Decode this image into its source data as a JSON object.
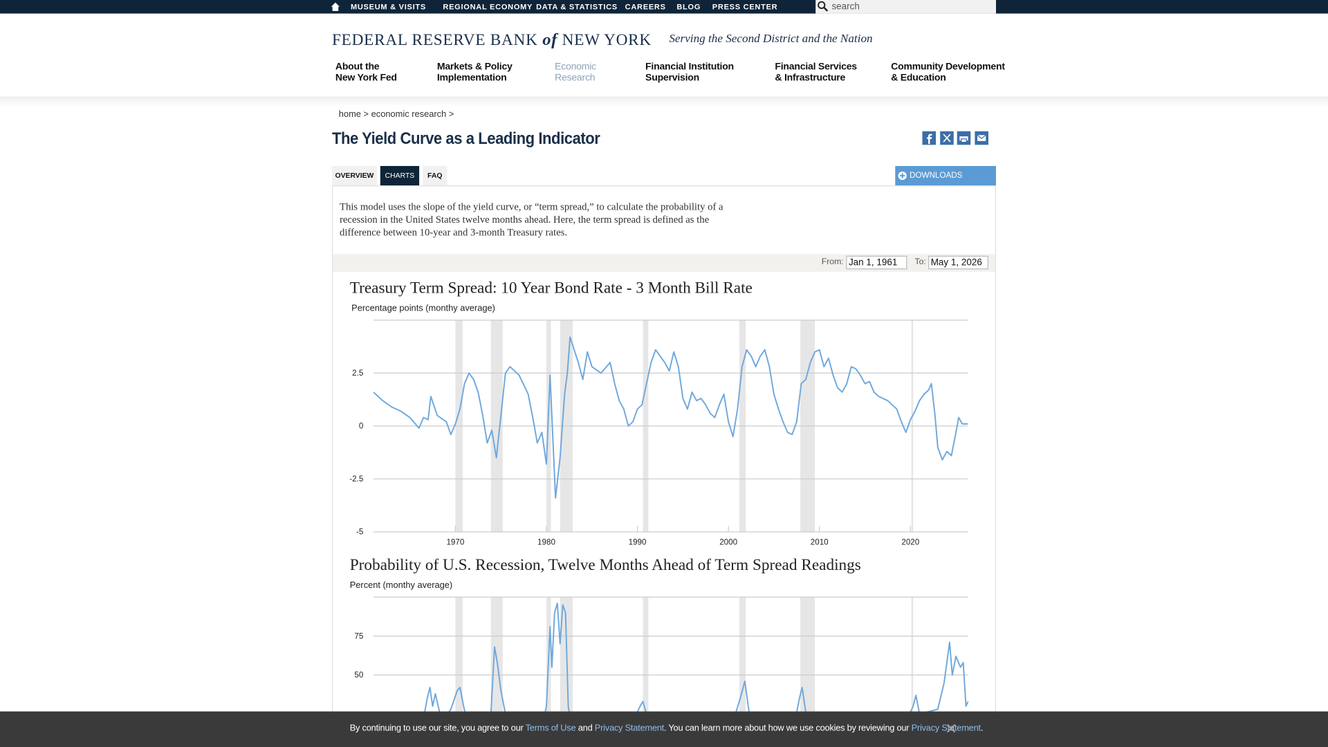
{
  "top_nav": [
    "MUSEUM & VISITS",
    "REGIONAL ECONOMY",
    "DATA & STATISTICS",
    "CAREERS",
    "BLOG",
    "PRESS CENTER"
  ],
  "search_placeholder": "search",
  "logo": {
    "name_start": "FEDERAL RESERVE BANK",
    "name_of": "of",
    "name_end": "NEW YORK",
    "tagline": "Serving the Second District and the Nation"
  },
  "main_nav": [
    [
      "About the",
      "New York Fed"
    ],
    [
      "Markets & Policy",
      "Implementation"
    ],
    [
      "Economic",
      "Research"
    ],
    [
      "Financial Institution",
      "Supervision"
    ],
    [
      "Financial Services",
      "& Infrastructure"
    ],
    [
      "Community Development",
      "& Education"
    ]
  ],
  "breadcrumb": [
    "home",
    "economic research"
  ],
  "breadcrumb_separator": ">",
  "page_title": "The Yield Curve as a Leading Indicator",
  "tabs": [
    "OVERVIEW",
    "CHARTS",
    "FAQ"
  ],
  "downloads": "DOWNLOADS",
  "description": "This model uses the slope of the yield curve, or “term spread,” to calculate the probability of a recession in the United States twelve months ahead. Here, the term spread is defined as the difference between 10-year and 3-month Treasury rates.",
  "date_range": {
    "from_label": "From:",
    "from": "Jan 1, 1961",
    "to_label": "To:",
    "to": "May 1, 2026"
  },
  "chart_data": [
    {
      "type": "line",
      "title": "Treasury Term Spread: 10 Year Bond Rate - 3 Month Bill Rate",
      "y_label": "Percentage points (monthy average)",
      "color": "#6fa8dc",
      "grid": true,
      "xlim": [
        1961,
        2026.33
      ],
      "ylim": [
        -5,
        5
      ],
      "xticks": [
        1970,
        1980,
        1990,
        2000,
        2010,
        2020
      ],
      "yticks": [
        -5,
        -2.5,
        0,
        2.5
      ],
      "recession_color": "#e6e6e6",
      "recessions": [
        [
          1970.0,
          1970.8
        ],
        [
          1973.9,
          1975.2
        ],
        [
          1980.0,
          1980.5
        ],
        [
          1981.5,
          1982.9
        ],
        [
          1990.6,
          1991.2
        ],
        [
          2001.2,
          2001.9
        ],
        [
          2007.9,
          2009.5
        ],
        [
          2020.1,
          2020.3
        ]
      ],
      "x": [
        1961,
        1962,
        1963,
        1964,
        1965,
        1966,
        1966.5,
        1967,
        1967.3,
        1968,
        1969,
        1969.5,
        1970,
        1970.5,
        1971,
        1971.5,
        1972,
        1972.5,
        1973,
        1973.5,
        1974,
        1974.5,
        1975,
        1975.5,
        1976,
        1977,
        1978,
        1978.5,
        1979,
        1979.5,
        1980,
        1980.4,
        1980.7,
        1981,
        1981.5,
        1982,
        1982.3,
        1982.6,
        1983.5,
        1984,
        1984.5,
        1985,
        1986,
        1987,
        1987.5,
        1988,
        1988.5,
        1989,
        1989.5,
        1990,
        1990.5,
        1991,
        1991.5,
        1992,
        1993,
        1993.5,
        1994,
        1994.5,
        1995,
        1995.5,
        1996,
        1996.5,
        1997,
        1997.5,
        1998,
        1998.5,
        1999,
        1999.5,
        2000,
        2000.5,
        2001,
        2001.5,
        2002,
        2002.5,
        2003,
        2003.5,
        2004,
        2004.5,
        2005,
        2005.5,
        2006,
        2006.5,
        2007,
        2007.5,
        2008,
        2008.5,
        2009,
        2009.5,
        2010,
        2010.5,
        2011,
        2011.5,
        2012,
        2012.5,
        2013,
        2013.5,
        2014,
        2014.5,
        2015,
        2015.5,
        2016,
        2016.5,
        2017,
        2017.5,
        2018,
        2018.5,
        2019,
        2019.5,
        2020,
        2020.5,
        2021,
        2021.5,
        2022,
        2022.3,
        2022.7,
        2023,
        2023.5,
        2024,
        2024.5,
        2025,
        2025.3,
        2025.7,
        2026.3
      ],
      "values": [
        1.6,
        1.2,
        0.9,
        0.7,
        0.4,
        -0.1,
        0.4,
        0.3,
        1.4,
        0.5,
        0.2,
        -0.4,
        0.1,
        0.8,
        2.0,
        2.5,
        2.2,
        1.6,
        0.5,
        -0.8,
        -0.2,
        -1.5,
        0.5,
        2.5,
        2.8,
        2.4,
        1.5,
        0.4,
        -0.8,
        -0.3,
        -1.8,
        2.4,
        -0.5,
        -3.4,
        -1.5,
        1.5,
        2.5,
        4.2,
        3.0,
        2.2,
        3.5,
        2.8,
        2.5,
        3.0,
        2.0,
        1.2,
        0.8,
        0.0,
        0.2,
        0.8,
        1.0,
        2.0,
        3.0,
        3.6,
        3.0,
        2.6,
        3.5,
        2.8,
        1.3,
        0.8,
        1.6,
        1.2,
        1.3,
        1.0,
        0.6,
        0.4,
        1.0,
        1.5,
        0.2,
        -0.5,
        0.8,
        2.8,
        3.6,
        3.3,
        2.8,
        3.3,
        3.6,
        2.8,
        1.5,
        0.8,
        0.2,
        -0.3,
        -0.4,
        0.2,
        2.0,
        2.2,
        3.0,
        3.5,
        3.6,
        2.8,
        3.2,
        2.4,
        1.8,
        1.6,
        2.0,
        2.8,
        2.7,
        2.4,
        2.0,
        2.1,
        1.6,
        1.4,
        1.3,
        1.2,
        1.0,
        0.8,
        0.2,
        -0.3,
        0.3,
        0.7,
        1.2,
        1.5,
        1.7,
        2.0,
        0.5,
        -1.0,
        -1.6,
        -1.2,
        -1.4,
        -0.3,
        0.4,
        0.1,
        0.1
      ]
    },
    {
      "type": "line",
      "title": "Probability of U.S. Recession, Twelve Months Ahead of Term Spread Readings",
      "y_label": "Percent (monthy average)",
      "color": "#6fa8dc",
      "grid": true,
      "xlim": [
        1961,
        2026.33
      ],
      "ylim": [
        0,
        100
      ],
      "yticks": [
        50,
        75
      ],
      "recession_color": "#e6e6e6",
      "recessions": [
        [
          1970.0,
          1970.8
        ],
        [
          1973.9,
          1975.2
        ],
        [
          1980.0,
          1980.5
        ],
        [
          1981.5,
          1982.9
        ],
        [
          1990.6,
          1991.2
        ],
        [
          2001.2,
          2001.9
        ],
        [
          2007.9,
          2009.5
        ],
        [
          2020.1,
          2020.3
        ]
      ],
      "x": [
        1961,
        1963,
        1965,
        1966.5,
        1966.9,
        1967.2,
        1967.5,
        1967.8,
        1968.5,
        1969.5,
        1970.2,
        1970.5,
        1970.9,
        1971.5,
        1973,
        1973.9,
        1974.3,
        1974.6,
        1975,
        1976,
        1978,
        1979.5,
        1980,
        1980.4,
        1980.6,
        1980.9,
        1981.2,
        1981.5,
        1981.8,
        1982.1,
        1982.4,
        1983,
        1985,
        1988,
        1989.5,
        1990.3,
        1990.6,
        1991,
        1993,
        1998,
        2000.5,
        2001.3,
        2001.8,
        2002.3,
        2004,
        2007.3,
        2007.8,
        2008.1,
        2008.4,
        2009,
        2015,
        2019.5,
        2020.3,
        2020.6,
        2021,
        2023,
        2023.7,
        2024.3,
        2024.6,
        2025,
        2025.5,
        2025.8,
        2026.1,
        2026.33
      ],
      "values": [
        8,
        10,
        14,
        22,
        35,
        42,
        30,
        38,
        20,
        28,
        40,
        42,
        30,
        15,
        12,
        25,
        68,
        58,
        40,
        10,
        8,
        15,
        30,
        81,
        55,
        90,
        96,
        70,
        95,
        90,
        30,
        8,
        5,
        10,
        20,
        30,
        33,
        25,
        5,
        5,
        20,
        35,
        46,
        25,
        5,
        20,
        35,
        42,
        30,
        8,
        3,
        20,
        30,
        37,
        25,
        28,
        45,
        71,
        50,
        62,
        55,
        58,
        30,
        33
      ]
    }
  ],
  "cookie_banner": {
    "text_start": "By continuing to use our site, you agree to our",
    "terms": "Terms of Use",
    "and": "and",
    "privacy": "Privacy Statement",
    "text_mid": ". You can learn more about how we use cookies by reviewing our",
    "privacy_again": "Privacy Statement",
    "text_end": "."
  }
}
